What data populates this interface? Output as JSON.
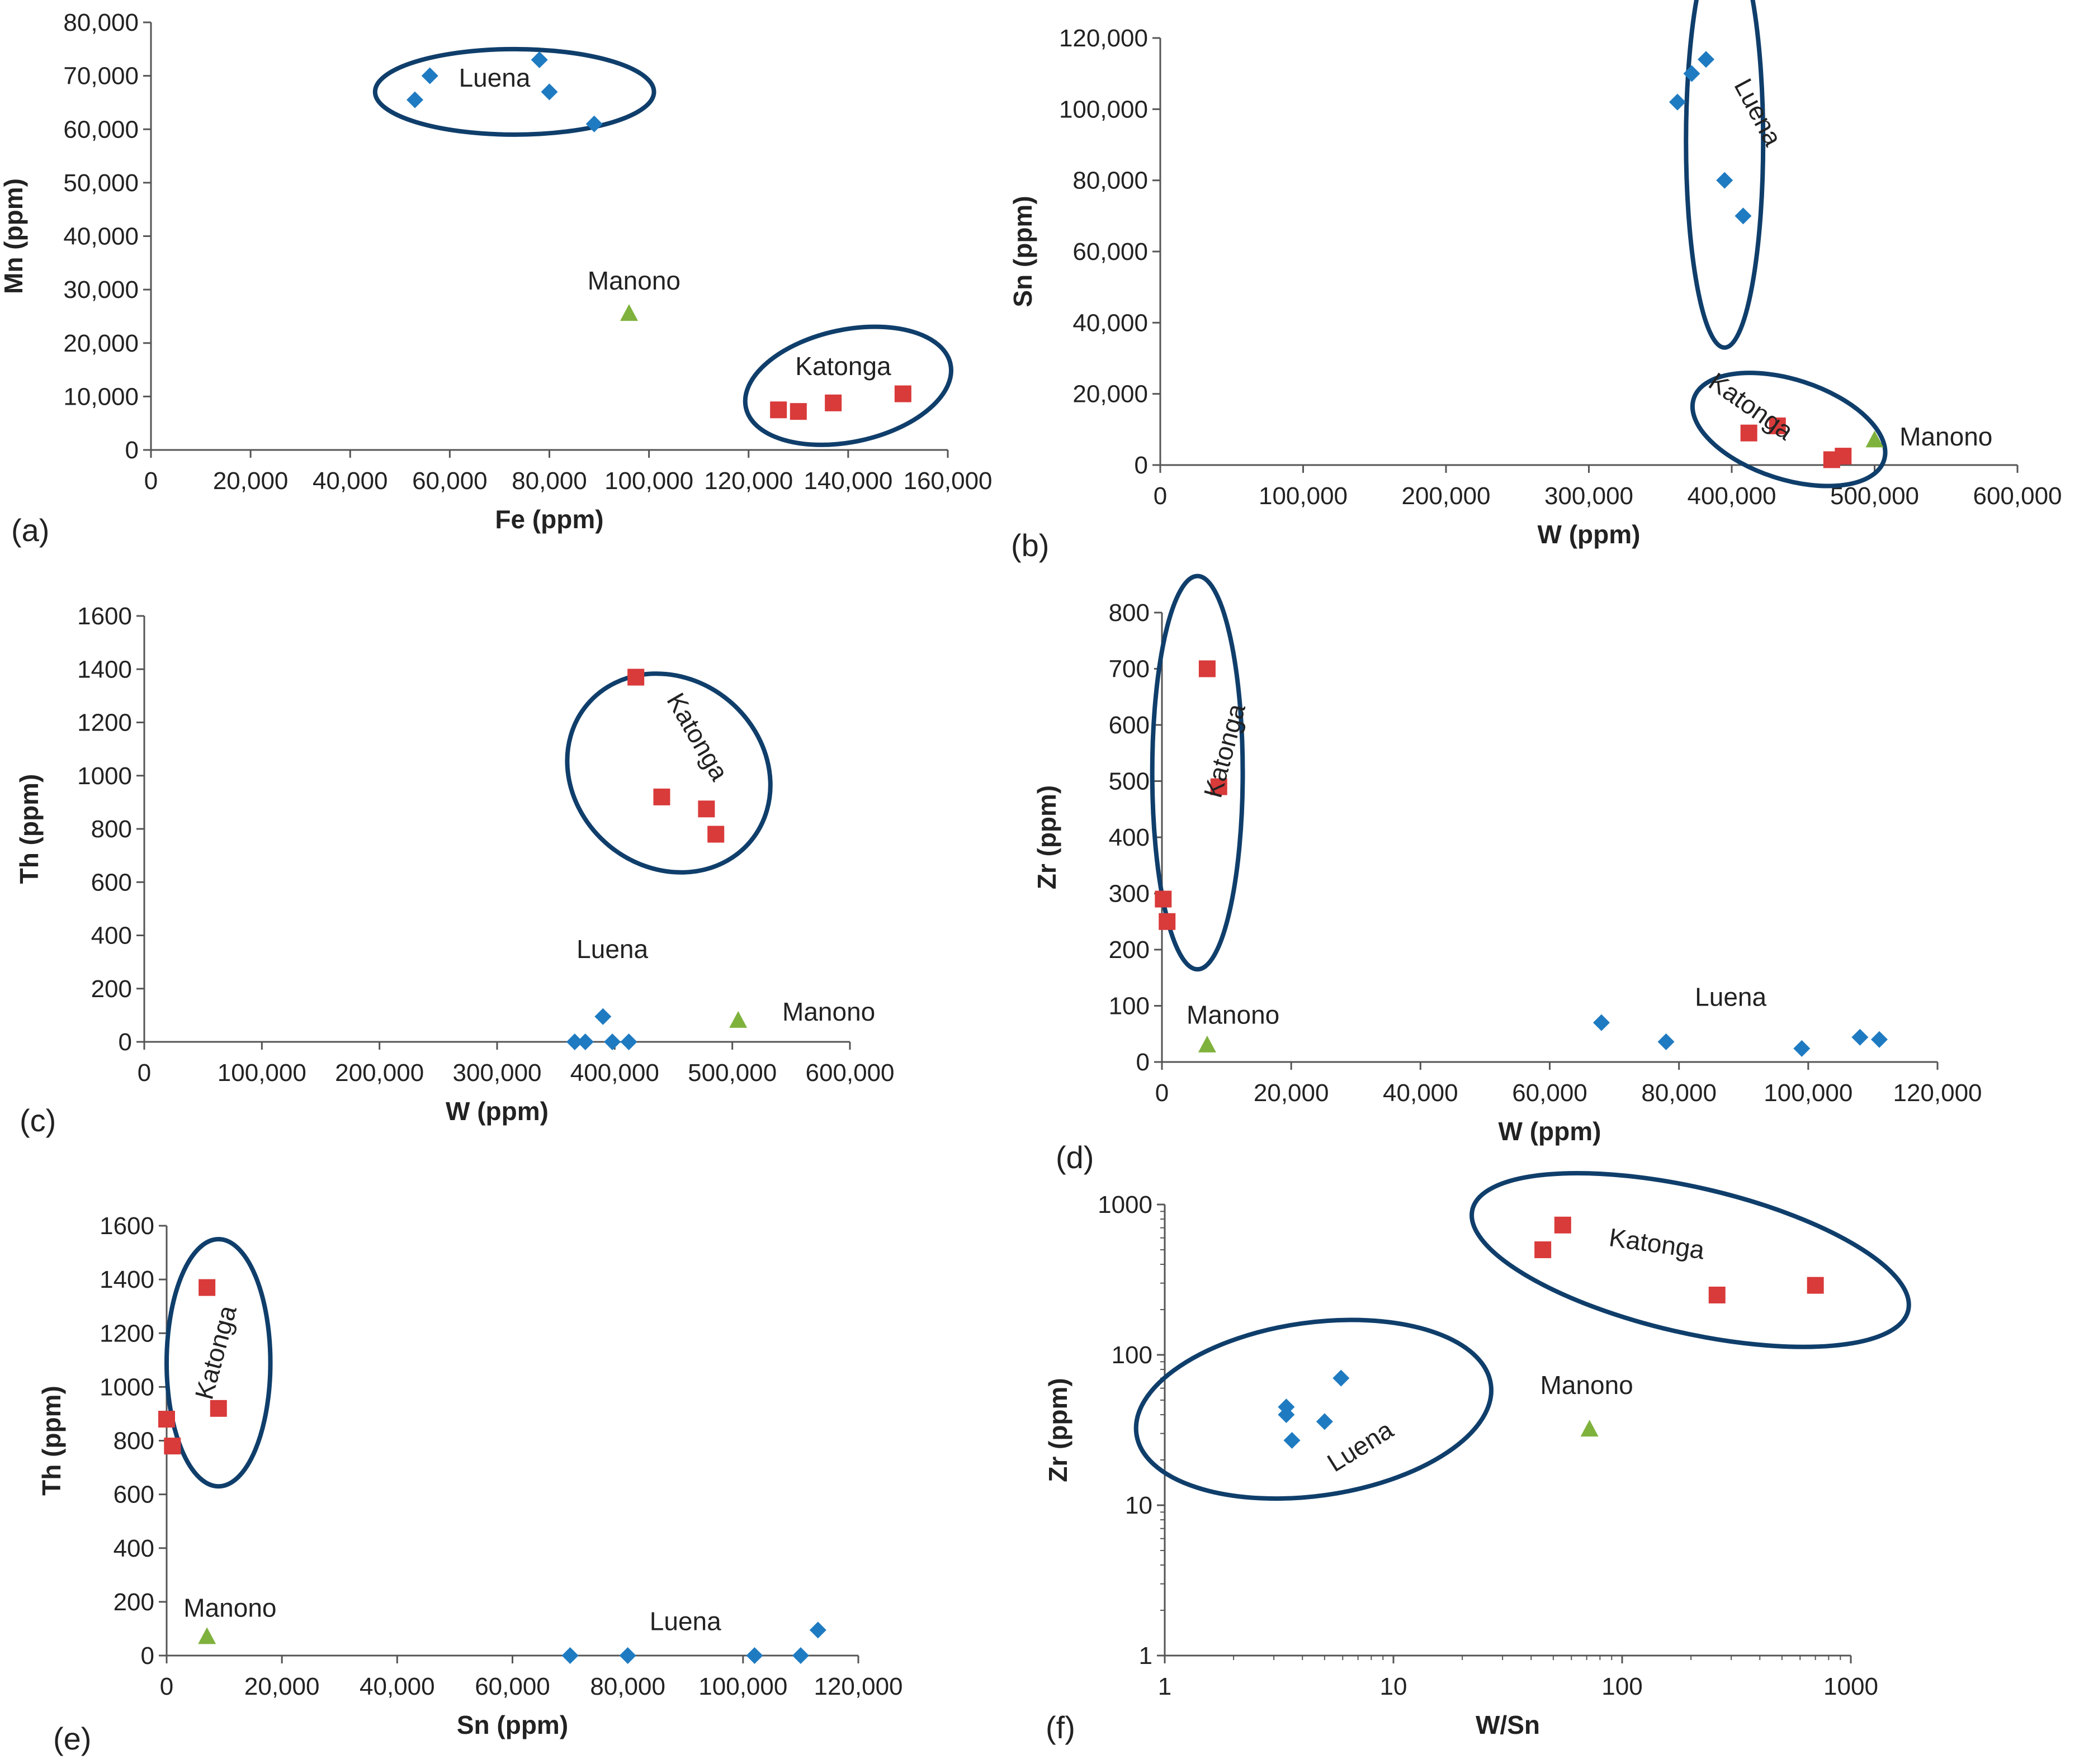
{
  "figure": {
    "panels": [
      "(a)",
      "(b)",
      "(c)",
      "(d)",
      "(e)",
      "(f)"
    ]
  },
  "colors": {
    "luena": "#1f7bc1",
    "katonga": "#d93a3a",
    "manono": "#7fb23d",
    "ellipse": "#0f3e6b",
    "axis": "#555555",
    "text": "#222222"
  },
  "chart_data": [
    {
      "panel": "(a)",
      "type": "scatter",
      "xlabel": "Fe (ppm)",
      "ylabel": "Mn (ppm)",
      "xlim": [
        0,
        160000
      ],
      "ylim": [
        0,
        80000
      ],
      "xticks": [
        0,
        20000,
        40000,
        60000,
        80000,
        100000,
        120000,
        140000,
        160000
      ],
      "xtick_labels": [
        "0",
        "20,000",
        "40,000",
        "60,000",
        "80,000",
        "100,000",
        "120,000",
        "140,000",
        "160,000"
      ],
      "yticks": [
        0,
        10000,
        20000,
        30000,
        40000,
        50000,
        60000,
        70000,
        80000
      ],
      "ytick_labels": [
        "0",
        "10,000",
        "20,000",
        "30,000",
        "40,000",
        "50,000",
        "60,000",
        "70,000",
        "80,000"
      ],
      "series": [
        {
          "name": "Luena",
          "marker": "diamond",
          "points": [
            [
              53000,
              65500
            ],
            [
              56000,
              70000
            ],
            [
              78000,
              73000
            ],
            [
              80000,
              67000
            ],
            [
              89000,
              61000
            ]
          ]
        },
        {
          "name": "Katonga",
          "marker": "square",
          "points": [
            [
              126000,
              7500
            ],
            [
              130000,
              7200
            ],
            [
              137000,
              8800
            ],
            [
              151000,
              10500
            ]
          ]
        },
        {
          "name": "Manono",
          "marker": "triangle",
          "points": [
            [
              96000,
              25500
            ]
          ]
        }
      ],
      "annotations": [
        {
          "text": "Luena",
          "x": 69000,
          "y": 68000,
          "rotate": 0
        },
        {
          "text": "Katonga",
          "x": 139000,
          "y": 14000,
          "rotate": 0
        },
        {
          "text": "Manono",
          "x": 97000,
          "y": 30000,
          "rotate": 0
        }
      ],
      "ellipses": [
        {
          "cx": 73000,
          "cy": 67000,
          "rx": 28000,
          "ry": 8000,
          "rot": 0
        },
        {
          "cx": 140000,
          "cy": 12000,
          "rx": 21000,
          "ry": 10500,
          "rot": -12
        }
      ]
    },
    {
      "panel": "(b)",
      "type": "scatter",
      "xlabel": "W (ppm)",
      "ylabel": "Sn (ppm)",
      "xlim": [
        0,
        600000
      ],
      "ylim": [
        0,
        120000
      ],
      "xticks": [
        0,
        100000,
        200000,
        300000,
        400000,
        500000,
        600000
      ],
      "xtick_labels": [
        "0",
        "100,000",
        "200,000",
        "300,000",
        "400,000",
        "500,000",
        "600,000"
      ],
      "yticks": [
        0,
        20000,
        40000,
        60000,
        80000,
        100000,
        120000
      ],
      "ytick_labels": [
        "0",
        "20,000",
        "40,000",
        "60,000",
        "80,000",
        "100,000",
        "120,000"
      ],
      "series": [
        {
          "name": "Luena",
          "marker": "diamond",
          "points": [
            [
              362000,
              102000
            ],
            [
              372000,
              110000
            ],
            [
              382000,
              114000
            ],
            [
              395000,
              80000
            ],
            [
              408000,
              70000
            ]
          ]
        },
        {
          "name": "Katonga",
          "marker": "square",
          "points": [
            [
              412000,
              9000
            ],
            [
              432000,
              11000
            ],
            [
              470000,
              1500
            ],
            [
              478000,
              2500
            ]
          ]
        },
        {
          "name": "Manono",
          "marker": "triangle",
          "points": [
            [
              500000,
              7000
            ]
          ]
        }
      ],
      "annotations": [
        {
          "text": "Luena",
          "x": 413000,
          "y": 98000,
          "rotate": 62
        },
        {
          "text": "Katonga",
          "x": 410000,
          "y": 14500,
          "rotate": 35
        },
        {
          "text": "Manono",
          "x": 550000,
          "y": 5500,
          "rotate": 0
        }
      ],
      "ellipses": [
        {
          "cx": 395000,
          "cy": 91000,
          "rx": 27000,
          "ry": 58000,
          "rot": 0
        },
        {
          "cx": 440000,
          "cy": 10000,
          "rx": 70000,
          "ry": 14000,
          "rot": 18
        }
      ]
    },
    {
      "panel": "(c)",
      "type": "scatter",
      "xlabel": "W (ppm)",
      "ylabel": "Th (ppm)",
      "xlim": [
        0,
        600000
      ],
      "ylim": [
        0,
        1600
      ],
      "xticks": [
        0,
        100000,
        200000,
        300000,
        400000,
        500000,
        600000
      ],
      "xtick_labels": [
        "0",
        "100,000",
        "200,000",
        "300,000",
        "400,000",
        "500,000",
        "600,000"
      ],
      "yticks": [
        0,
        200,
        400,
        600,
        800,
        1000,
        1200,
        1400,
        1600
      ],
      "ytick_labels": [
        "0",
        "200",
        "400",
        "600",
        "800",
        "1000",
        "1200",
        "1400",
        "1600"
      ],
      "series": [
        {
          "name": "Luena",
          "marker": "diamond",
          "points": [
            [
              366000,
              0
            ],
            [
              375000,
              0
            ],
            [
              390000,
              95
            ],
            [
              398000,
              0
            ],
            [
              412000,
              0
            ]
          ]
        },
        {
          "name": "Katonga",
          "marker": "square",
          "points": [
            [
              418000,
              1370
            ],
            [
              440000,
              920
            ],
            [
              478000,
              875
            ],
            [
              486000,
              780
            ]
          ]
        },
        {
          "name": "Manono",
          "marker": "triangle",
          "points": [
            [
              505000,
              80
            ]
          ]
        }
      ],
      "annotations": [
        {
          "text": "Katonga",
          "x": 464000,
          "y": 1130,
          "rotate": 60
        },
        {
          "text": "Luena",
          "x": 398000,
          "y": 315,
          "rotate": 0
        },
        {
          "text": "Manono",
          "x": 582000,
          "y": 80,
          "rotate": 0
        }
      ],
      "ellipses": [
        {
          "cx": 446000,
          "cy": 1010,
          "rx": 80000,
          "ry": 400,
          "rot": -50
        },
        {
          "cx": 398000,
          "cy": 68000,
          "rx": 62000,
          "ry": 160,
          "rot": 0
        }
      ]
    },
    {
      "panel": "(d)",
      "type": "scatter",
      "xlabel": "W (ppm)",
      "ylabel": "Zr (ppm)",
      "xlim": [
        0,
        120000
      ],
      "ylim": [
        0,
        800
      ],
      "xticks": [
        0,
        20000,
        40000,
        60000,
        80000,
        100000,
        120000
      ],
      "xtick_labels": [
        "0",
        "20,000",
        "40,000",
        "60,000",
        "80,000",
        "100,000",
        "120,000"
      ],
      "yticks": [
        0,
        100,
        200,
        300,
        400,
        500,
        600,
        700,
        800
      ],
      "ytick_labels": [
        "0",
        "100",
        "200",
        "300",
        "400",
        "500",
        "600",
        "700",
        "800"
      ],
      "series": [
        {
          "name": "Luena",
          "marker": "diamond",
          "points": [
            [
              68000,
              70
            ],
            [
              78000,
              36
            ],
            [
              99000,
              24
            ],
            [
              108000,
              44
            ],
            [
              111000,
              40
            ]
          ]
        },
        {
          "name": "Katonga",
          "marker": "square",
          "points": [
            [
              200,
              290
            ],
            [
              800,
              250
            ],
            [
              7000,
              700
            ],
            [
              8800,
              490
            ]
          ]
        },
        {
          "name": "Manono",
          "marker": "triangle",
          "points": [
            [
              7000,
              30
            ]
          ]
        }
      ],
      "annotations": [
        {
          "text": "Katonga",
          "x": 11000,
          "y": 550,
          "rotate": -75
        },
        {
          "text": "Luena",
          "x": 88000,
          "y": 100,
          "rotate": 0
        },
        {
          "text": "Manono",
          "x": 11000,
          "y": 68,
          "rotate": 0
        }
      ],
      "ellipses": [
        {
          "cx": 5500,
          "cy": 515,
          "rx": 7000,
          "ry": 350,
          "rot": 0
        },
        {
          "cx": 90000,
          "cy": 60000,
          "rx": 29000,
          "ry": 40,
          "rot": 0
        }
      ]
    },
    {
      "panel": "(e)",
      "type": "scatter",
      "xlabel": "Sn (ppm)",
      "ylabel": "Th (ppm)",
      "xlim": [
        0,
        120000
      ],
      "ylim": [
        0,
        1600
      ],
      "xticks": [
        0,
        20000,
        40000,
        60000,
        80000,
        100000,
        120000
      ],
      "xtick_labels": [
        "0",
        "20,000",
        "40,000",
        "60,000",
        "80,000",
        "100,000",
        "120,000"
      ],
      "yticks": [
        0,
        200,
        400,
        600,
        800,
        1000,
        1200,
        1400,
        1600
      ],
      "ytick_labels": [
        "0",
        "200",
        "400",
        "600",
        "800",
        "1000",
        "1200",
        "1400",
        "1600"
      ],
      "series": [
        {
          "name": "Luena",
          "marker": "diamond",
          "points": [
            [
              70000,
              0
            ],
            [
              80000,
              0
            ],
            [
              102000,
              0
            ],
            [
              110000,
              0
            ],
            [
              113000,
              95
            ]
          ]
        },
        {
          "name": "Katonga",
          "marker": "square",
          "points": [
            [
              0,
              880
            ],
            [
              1000,
              780
            ],
            [
              7000,
              1370
            ],
            [
              9000,
              920
            ]
          ]
        },
        {
          "name": "Manono",
          "marker": "triangle",
          "points": [
            [
              7000,
              70
            ]
          ]
        }
      ],
      "annotations": [
        {
          "text": "Katonga",
          "x": 10000,
          "y": 1120,
          "rotate": -75
        },
        {
          "text": "Luena",
          "x": 90000,
          "y": 95,
          "rotate": 0
        },
        {
          "text": "Manono",
          "x": 11000,
          "y": 145,
          "rotate": 0
        }
      ],
      "ellipses": [
        {
          "cx": 9000,
          "cy": 1090,
          "rx": 9000,
          "ry": 460,
          "rot": 0
        },
        {
          "cx": 90000,
          "cy": 100000,
          "rx": 28000,
          "ry": 95,
          "rot": 0
        }
      ]
    },
    {
      "panel": "(f)",
      "type": "scatter",
      "scale": "log",
      "xlabel": "W/Sn",
      "ylabel": "Zr (ppm)",
      "xlim": [
        1,
        1000
      ],
      "ylim": [
        1,
        1000
      ],
      "xticks": [
        1,
        10,
        100,
        1000
      ],
      "xtick_labels": [
        "1",
        "10",
        "100",
        "1000"
      ],
      "yticks": [
        1,
        10,
        100,
        1000
      ],
      "ytick_labels": [
        "1",
        "10",
        "100",
        "1000"
      ],
      "series": [
        {
          "name": "Luena",
          "marker": "diamond",
          "points": [
            [
              3.4,
              45
            ],
            [
              3.4,
              40
            ],
            [
              3.6,
              27
            ],
            [
              5.0,
              36
            ],
            [
              5.9,
              70
            ]
          ]
        },
        {
          "name": "Katonga",
          "marker": "square",
          "points": [
            [
              45,
              500
            ],
            [
              55,
              730
            ],
            [
              260,
              250
            ],
            [
              700,
              290
            ]
          ]
        },
        {
          "name": "Manono",
          "marker": "triangle",
          "points": [
            [
              72,
              32
            ]
          ]
        }
      ],
      "annotations": [
        {
          "text": "Katonga",
          "x": 140,
          "y": 480,
          "rotate": 8
        },
        {
          "text": "Luena",
          "x": 7.5,
          "y": 22,
          "rotate": -32
        },
        {
          "text": "Manono",
          "x": 70,
          "y": 55,
          "rotate": 0
        }
      ],
      "ellipses": []
    }
  ]
}
